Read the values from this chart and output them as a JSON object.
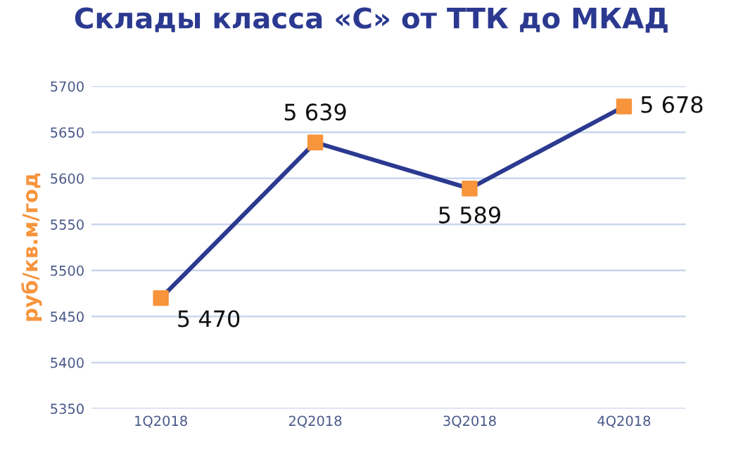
{
  "chart_data": {
    "type": "line",
    "title": "Склады класса «С» от ТТК до МКАД",
    "ylabel": "руб/кв.м/год",
    "categories": [
      "1Q2018",
      "2Q2018",
      "3Q2018",
      "4Q2018"
    ],
    "series": [
      {
        "color": "#2b3990",
        "values": [
          5470,
          5639,
          5589,
          5678
        ],
        "value_labels": [
          "5 470",
          "5 639",
          "5 589",
          "5 678"
        ],
        "colors": [
          "#f7943c",
          "#f7943c",
          "#f7943c",
          "#f7943c"
        ]
      }
    ],
    "marker": "square",
    "line_style": "solid",
    "ylim": [
      5350,
      5700
    ],
    "yticks": [
      5350,
      5400,
      5450,
      5500,
      5550,
      5600,
      5650,
      5700
    ],
    "grid": "y"
  }
}
